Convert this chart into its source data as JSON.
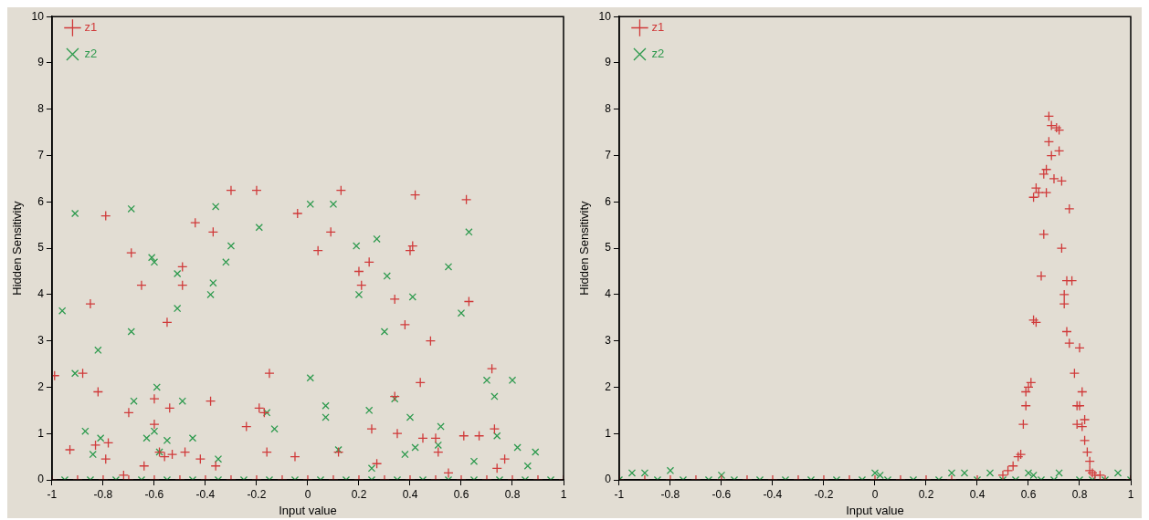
{
  "chart_data": [
    {
      "type": "scatter",
      "xlabel": "Input value",
      "ylabel": "Hidden Sensitivity",
      "xlim": [
        -1,
        1
      ],
      "ylim": [
        0,
        10
      ],
      "xticks": [
        -1,
        -0.8,
        -0.6,
        -0.4,
        -0.2,
        0,
        0.2,
        0.4,
        0.6,
        0.8,
        1
      ],
      "yticks": [
        0,
        1,
        2,
        3,
        4,
        5,
        6,
        7,
        8,
        9,
        10
      ],
      "grid": false,
      "legend": "top left",
      "marker": "cross",
      "series": [
        {
          "name": "z1",
          "color": "#d03a3a",
          "x": [
            -0.99,
            -0.93,
            -0.88,
            -0.85,
            -0.83,
            -0.82,
            -0.79,
            -0.78,
            -0.79,
            -0.72,
            -0.69,
            -0.7,
            -0.65,
            -0.64,
            -0.6,
            -0.6,
            -0.58,
            -0.56,
            -0.55,
            -0.54,
            -0.53,
            -0.49,
            -0.49,
            -0.48,
            -0.44,
            -0.42,
            -0.38,
            -0.37,
            -0.36,
            -0.3,
            -0.24,
            -0.2,
            -0.19,
            -0.17,
            -0.15,
            -0.16,
            -0.04,
            -0.05,
            0.04,
            0.09,
            0.13,
            0.12,
            0.2,
            0.21,
            0.24,
            0.25,
            0.27,
            0.34,
            0.34,
            0.35,
            0.38,
            0.4,
            0.41,
            0.42,
            0.44,
            0.45,
            0.48,
            0.5,
            0.51,
            0.55,
            0.61,
            0.62,
            0.63,
            0.67,
            0.72,
            0.73,
            0.74,
            0.77,
            -1,
            -0.9,
            -0.8,
            -0.7,
            -0.6,
            -0.5,
            -0.4,
            -0.3,
            -0.2,
            -0.1,
            0,
            0.1,
            0.2,
            0.3,
            0.4,
            0.5,
            0.6,
            0.7,
            0.8,
            0.9,
            1
          ],
          "values": [
            2.25,
            0.65,
            2.3,
            3.8,
            0.75,
            1.9,
            5.7,
            0.8,
            0.45,
            0.1,
            4.9,
            1.45,
            4.2,
            0.3,
            1.75,
            1.2,
            0.6,
            0.5,
            3.4,
            1.55,
            0.55,
            4.6,
            4.2,
            0.6,
            5.55,
            0.45,
            1.7,
            5.35,
            0.3,
            6.25,
            1.15,
            6.25,
            1.55,
            1.45,
            2.3,
            0.6,
            5.75,
            0.5,
            4.95,
            5.35,
            6.25,
            0.6,
            4.5,
            4.2,
            4.7,
            1.1,
            0.35,
            3.9,
            1.8,
            1,
            3.35,
            4.95,
            5.05,
            6.15,
            2.1,
            0.9,
            3,
            0.9,
            0.6,
            0.15,
            0.95,
            6.05,
            3.85,
            0.95,
            2.4,
            1.1,
            0.25,
            0.45,
            0,
            0,
            0,
            0,
            0,
            0,
            0,
            0,
            0,
            0,
            0,
            0,
            0,
            0,
            0,
            0,
            0,
            0,
            0,
            0,
            0
          ]
        },
        {
          "name": "z2",
          "color": "#2e9a4e",
          "x": [
            -0.96,
            -0.91,
            -0.91,
            -0.87,
            -0.84,
            -0.82,
            -0.81,
            -0.69,
            -0.69,
            -0.68,
            -0.63,
            -0.61,
            -0.6,
            -0.59,
            -0.6,
            -0.58,
            -0.55,
            -0.51,
            -0.51,
            -0.49,
            -0.45,
            -0.38,
            -0.37,
            -0.36,
            -0.35,
            -0.32,
            -0.3,
            -0.19,
            -0.16,
            -0.13,
            0.01,
            0.01,
            0.07,
            0.07,
            0.1,
            0.12,
            0.19,
            0.2,
            0.24,
            0.25,
            0.27,
            0.31,
            0.3,
            0.34,
            0.38,
            0.4,
            0.41,
            0.42,
            0.51,
            0.52,
            0.55,
            0.6,
            0.63,
            0.65,
            0.7,
            0.73,
            0.74,
            0.8,
            0.82,
            0.86,
            0.89,
            -0.95,
            -0.85,
            -0.75,
            -0.65,
            -0.55,
            -0.45,
            -0.35,
            -0.25,
            -0.15,
            -0.05,
            0.05,
            0.15,
            0.25,
            0.35,
            0.45,
            0.55,
            0.65,
            0.75,
            0.85,
            0.95
          ],
          "values": [
            3.65,
            5.75,
            2.3,
            1.05,
            0.55,
            2.8,
            0.9,
            5.85,
            3.2,
            1.7,
            0.9,
            4.8,
            4.7,
            2,
            1.05,
            0.6,
            0.85,
            4.45,
            3.7,
            1.7,
            0.9,
            4,
            4.25,
            5.9,
            0.45,
            4.7,
            5.05,
            5.45,
            1.45,
            1.1,
            5.95,
            2.2,
            1.6,
            1.35,
            5.95,
            0.65,
            5.05,
            4,
            1.5,
            0.25,
            5.2,
            4.4,
            3.2,
            1.75,
            0.55,
            1.35,
            3.95,
            0.7,
            0.75,
            1.15,
            4.6,
            3.6,
            5.35,
            0.4,
            2.15,
            1.8,
            0.95,
            2.15,
            0.7,
            0.3,
            0.6,
            0,
            0,
            0,
            0,
            0,
            0,
            0,
            0,
            0,
            0,
            0,
            0,
            0,
            0,
            0,
            0,
            0,
            0,
            0,
            0
          ]
        }
      ]
    },
    {
      "type": "scatter",
      "xlabel": "Input value",
      "ylabel": "Hidden Sensitivity",
      "xlim": [
        -1,
        1
      ],
      "ylim": [
        0,
        10
      ],
      "xticks": [
        -1,
        -0.8,
        -0.6,
        -0.4,
        -0.2,
        0,
        0.2,
        0.4,
        0.6,
        0.8,
        1
      ],
      "yticks": [
        0,
        1,
        2,
        3,
        4,
        5,
        6,
        7,
        8,
        9,
        10
      ],
      "grid": false,
      "legend": "top left",
      "marker": "cross",
      "series": [
        {
          "name": "z1",
          "color": "#d03a3a",
          "x": [
            0.5,
            0.52,
            0.54,
            0.56,
            0.57,
            0.58,
            0.59,
            0.59,
            0.6,
            0.61,
            0.62,
            0.63,
            0.62,
            0.63,
            0.64,
            0.65,
            0.66,
            0.66,
            0.67,
            0.67,
            0.68,
            0.68,
            0.69,
            0.69,
            0.7,
            0.71,
            0.72,
            0.72,
            0.73,
            0.73,
            0.74,
            0.74,
            0.75,
            0.76,
            0.75,
            0.76,
            0.77,
            0.78,
            0.79,
            0.79,
            0.8,
            0.8,
            0.81,
            0.81,
            0.82,
            0.82,
            0.83,
            0.84,
            0.84,
            0.85,
            0.86,
            0.88,
            -1,
            -0.9,
            -0.8,
            -0.7,
            -0.6,
            -0.5,
            -0.4,
            -0.3,
            -0.2,
            -0.1,
            0,
            0.1,
            0.2,
            0.3,
            0.4,
            0.9,
            1
          ],
          "values": [
            0.1,
            0.2,
            0.3,
            0.5,
            0.55,
            1.2,
            1.6,
            1.9,
            2,
            2.1,
            3.45,
            3.4,
            6.1,
            6.3,
            6.2,
            4.4,
            5.3,
            6.6,
            6.2,
            6.7,
            7.3,
            7.85,
            7,
            7.65,
            6.5,
            7.6,
            7.55,
            7.1,
            6.45,
            5,
            4,
            3.8,
            4.3,
            5.85,
            3.2,
            2.95,
            4.3,
            2.3,
            1.2,
            1.6,
            2.85,
            1.6,
            1.9,
            1.15,
            1.3,
            0.85,
            0.6,
            0.4,
            0.2,
            0.15,
            0.1,
            0.1,
            0,
            0,
            0,
            0,
            0,
            0,
            0,
            0,
            0,
            0,
            0,
            0,
            0,
            0,
            0,
            0,
            0
          ]
        },
        {
          "name": "z2",
          "color": "#2e9a4e",
          "x": [
            -0.95,
            -0.9,
            -0.8,
            -0.6,
            0,
            0.02,
            0.3,
            0.35,
            0.45,
            0.6,
            0.62,
            0.72,
            0.95,
            -1,
            -0.85,
            -0.75,
            -0.65,
            -0.55,
            -0.45,
            -0.35,
            -0.25,
            -0.15,
            -0.05,
            0.05,
            0.15,
            0.25,
            0.4,
            0.5,
            0.55,
            0.65,
            0.7,
            0.8,
            0.85,
            0.9,
            1
          ],
          "values": [
            0.15,
            0.15,
            0.2,
            0.1,
            0.15,
            0.1,
            0.15,
            0.15,
            0.15,
            0.15,
            0.1,
            0.15,
            0.15,
            0,
            0,
            0,
            0,
            0,
            0,
            0,
            0,
            0,
            0,
            0,
            0,
            0,
            0,
            0,
            0,
            0,
            0,
            0,
            0,
            0,
            0
          ]
        }
      ]
    }
  ]
}
